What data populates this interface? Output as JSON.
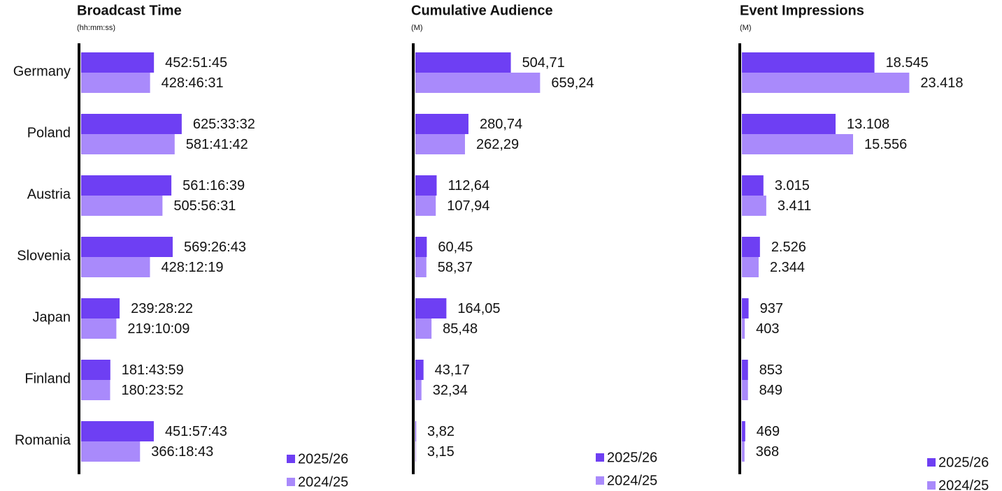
{
  "chart_data": [
    {
      "type": "bar",
      "title": "Broadcast Time",
      "subtitle": "(hh:mm:ss)",
      "categories": [
        "Germany",
        "Poland",
        "Austria",
        "Slovenia",
        "Japan",
        "Finland",
        "Romania"
      ],
      "xlim": [
        0,
        2000
      ],
      "series": [
        {
          "name": "2025/26",
          "color": "#6e3ff3",
          "values": [
            452.8625,
            625.5589,
            561.2775,
            569.4453,
            239.4728,
            181.7331,
            451.9619
          ],
          "value_labels": [
            "452:51:45",
            "625:33:32",
            "561:16:39",
            "569:26:43",
            "239:28:22",
            "181:43:59",
            "451:57:43"
          ]
        },
        {
          "name": "2024/25",
          "color": "#a98afb",
          "values": [
            428.7753,
            581.695,
            505.9419,
            428.2053,
            219.1692,
            180.3978,
            366.3119
          ],
          "value_labels": [
            "428:46:31",
            "581:41:42",
            "505:56:31",
            "428:12:19",
            "219:10:09",
            "180:23:52",
            "366:18:43"
          ]
        }
      ]
    },
    {
      "type": "bar",
      "title": "Cumulative Audience",
      "subtitle": "(M)",
      "xlim": [
        0,
        1700
      ],
      "series": [
        {
          "name": "2025/26",
          "color": "#6e3ff3",
          "values": [
            504.71,
            280.74,
            112.64,
            60.45,
            164.05,
            43.17,
            3.82
          ],
          "value_labels": [
            "504,71",
            "280,74",
            "112,64",
            "60,45",
            "164,05",
            "43,17",
            "3,82"
          ]
        },
        {
          "name": "2024/25",
          "color": "#a98afb",
          "values": [
            659.24,
            262.29,
            107.94,
            58.37,
            85.48,
            32.34,
            3.15
          ],
          "value_labels": [
            "659,24",
            "262,29",
            "107,94",
            "58,37",
            "85,48",
            "32,34",
            "3,15"
          ]
        }
      ]
    },
    {
      "type": "bar",
      "title": "Event Impressions",
      "subtitle": "(M)",
      "xlim": [
        0,
        45000
      ],
      "series": [
        {
          "name": "2025/26",
          "color": "#6e3ff3",
          "values": [
            18545,
            13108,
            3015,
            2526,
            937,
            853,
            469
          ],
          "value_labels": [
            "18.545",
            "13.108",
            "3.015",
            "2.526",
            "937",
            "853",
            "469"
          ]
        },
        {
          "name": "2024/25",
          "color": "#a98afb",
          "values": [
            23418,
            15556,
            3411,
            2344,
            403,
            849,
            368
          ],
          "value_labels": [
            "23.418",
            "15.556",
            "3.411",
            "2.344",
            "403",
            "849",
            "368"
          ]
        }
      ]
    }
  ]
}
